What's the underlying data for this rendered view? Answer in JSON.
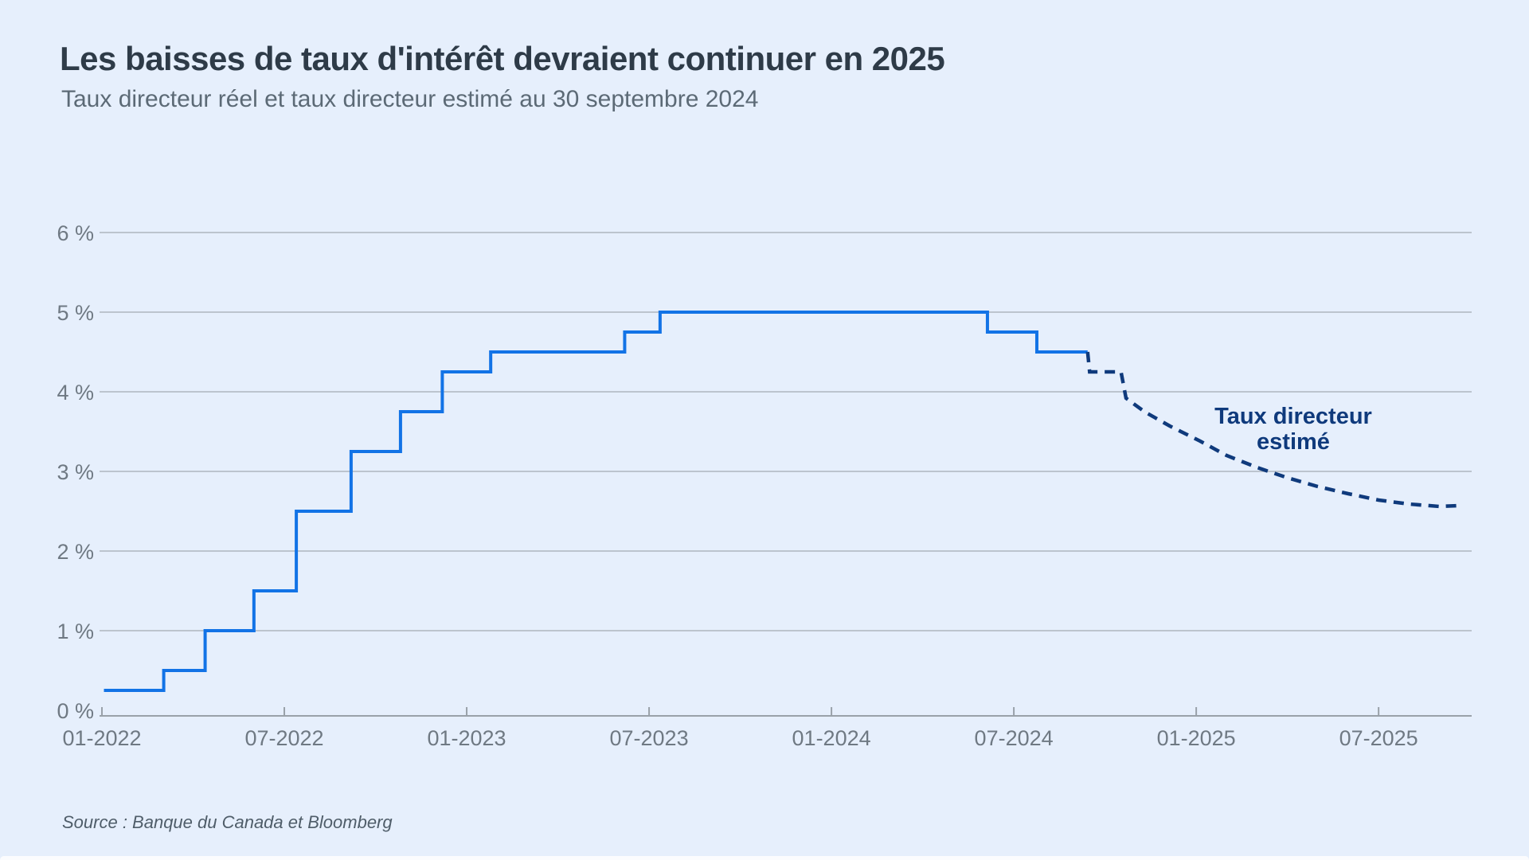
{
  "chart_data": {
    "type": "line",
    "title": "Les baisses de taux d'intérêt devraient continuer en 2025",
    "subtitle": "Taux directeur réel et taux directeur estimé au 30 septembre 2024",
    "unit": "%",
    "grid": "on",
    "y_axis": {
      "ticks": [
        0,
        1,
        2,
        3,
        4,
        5,
        6
      ],
      "tick_labels": [
        "0 %",
        "1 %",
        "2 %",
        "3 %",
        "4 %",
        "5 %",
        "6 %"
      ],
      "range": [
        0,
        6.5
      ]
    },
    "x_axis": {
      "tick_dates": [
        "2022-01-01",
        "2022-07-01",
        "2023-01-01",
        "2023-07-01",
        "2024-01-01",
        "2024-07-01",
        "2025-01-01",
        "2025-07-01"
      ],
      "tick_labels": [
        "01-2022",
        "07-2022",
        "01-2023",
        "07-2023",
        "01-2024",
        "07-2024",
        "01-2025",
        "07-2025"
      ],
      "range": [
        "2022-01",
        "2025-10"
      ]
    },
    "series": [
      {
        "name": "Taux directeur réel",
        "style": "solid",
        "step": true,
        "end_date": "2024-09-14",
        "points": [
          [
            "2022-01-03",
            0.25
          ],
          [
            "2022-03-02",
            0.5
          ],
          [
            "2022-04-13",
            1.0
          ],
          [
            "2022-06-01",
            1.5
          ],
          [
            "2022-07-13",
            2.5
          ],
          [
            "2022-09-07",
            3.25
          ],
          [
            "2022-10-26",
            3.75
          ],
          [
            "2022-12-07",
            4.25
          ],
          [
            "2023-01-25",
            4.5
          ],
          [
            "2023-06-07",
            4.75
          ],
          [
            "2023-07-12",
            5.0
          ],
          [
            "2024-06-05",
            4.75
          ],
          [
            "2024-07-24",
            4.5
          ]
        ]
      },
      {
        "name": "Taux directeur estimé",
        "style": "dashed",
        "step": false,
        "points": [
          [
            "2024-09-14",
            4.5
          ],
          [
            "2024-09-16",
            4.25
          ],
          [
            "2024-10-17",
            4.25
          ],
          [
            "2024-10-22",
            3.92
          ],
          [
            "2024-11-10",
            3.75
          ],
          [
            "2024-12-05",
            3.57
          ],
          [
            "2025-01-05",
            3.38
          ],
          [
            "2025-02-01",
            3.2
          ],
          [
            "2025-03-01",
            3.05
          ],
          [
            "2025-04-01",
            2.92
          ],
          [
            "2025-05-01",
            2.81
          ],
          [
            "2025-06-01",
            2.72
          ],
          [
            "2025-07-01",
            2.64
          ],
          [
            "2025-08-01",
            2.59
          ],
          [
            "2025-09-01",
            2.56
          ],
          [
            "2025-09-20",
            2.57
          ]
        ]
      }
    ],
    "annotation": {
      "line1": "Taux directeur",
      "line2": "estimé"
    }
  },
  "source": "Source :  Banque du Canada et Bloomberg",
  "colors": {
    "background": "#e6effc",
    "actual_line": "#1273e6",
    "estimated_line": "#0f3a7c",
    "grid": "#aeb6bf",
    "axis": "#99a1a9",
    "tick_label": "#6f7983",
    "title": "#2e3b48",
    "subtitle": "#5c6a76",
    "annotation_text": "#0f3a7c",
    "source_text": "#4f5d69"
  }
}
